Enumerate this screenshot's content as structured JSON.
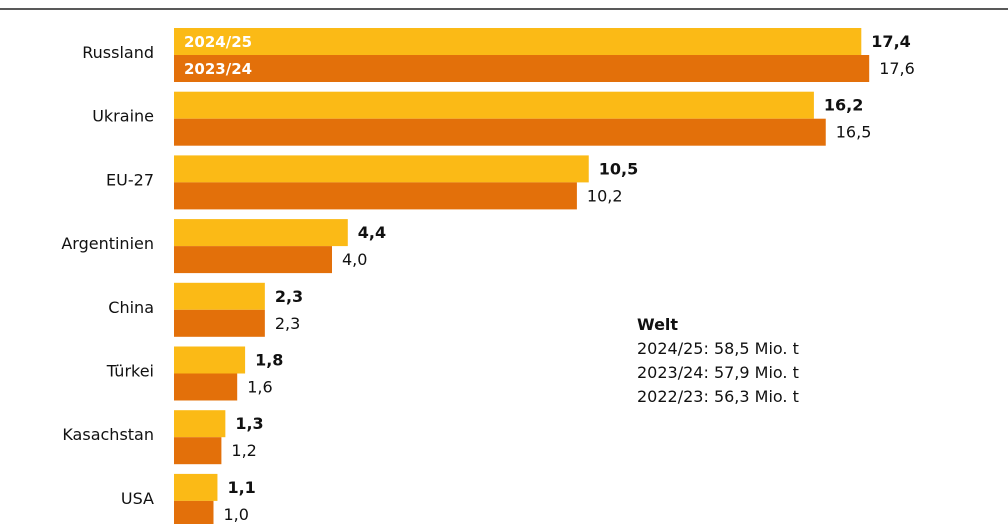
{
  "chart_data": {
    "type": "bar",
    "orientation": "horizontal",
    "categories": [
      "Russland",
      "Ukraine",
      "EU-27",
      "Argentinien",
      "China",
      "Türkei",
      "Kasachstan",
      "USA"
    ],
    "series": [
      {
        "name": "2024/25",
        "values": [
          17.4,
          16.2,
          10.5,
          4.4,
          2.3,
          1.8,
          1.3,
          1.1
        ],
        "labels": [
          "17,4",
          "16,2",
          "10,5",
          "4,4",
          "2,3",
          "1,8",
          "1,3",
          "1,1"
        ],
        "color": "#FBBA16",
        "label_bold": true
      },
      {
        "name": "2023/24",
        "values": [
          17.6,
          16.5,
          10.2,
          4.0,
          2.3,
          1.6,
          1.2,
          1.0
        ],
        "labels": [
          "17,6",
          "16,5",
          "10,2",
          "4,0",
          "2,3",
          "1,6",
          "1,2",
          "1,0"
        ],
        "color": "#E3700A",
        "label_bold": false
      }
    ],
    "xlim": [
      0,
      18
    ],
    "grid": false,
    "legend": "inside-first-bar"
  },
  "annotation": {
    "title": "Welt",
    "lines": [
      "2024/25: 58,5 Mio. t",
      "2023/24: 57,9 Mio. t",
      "2022/23: 56,3 Mio. t"
    ]
  }
}
